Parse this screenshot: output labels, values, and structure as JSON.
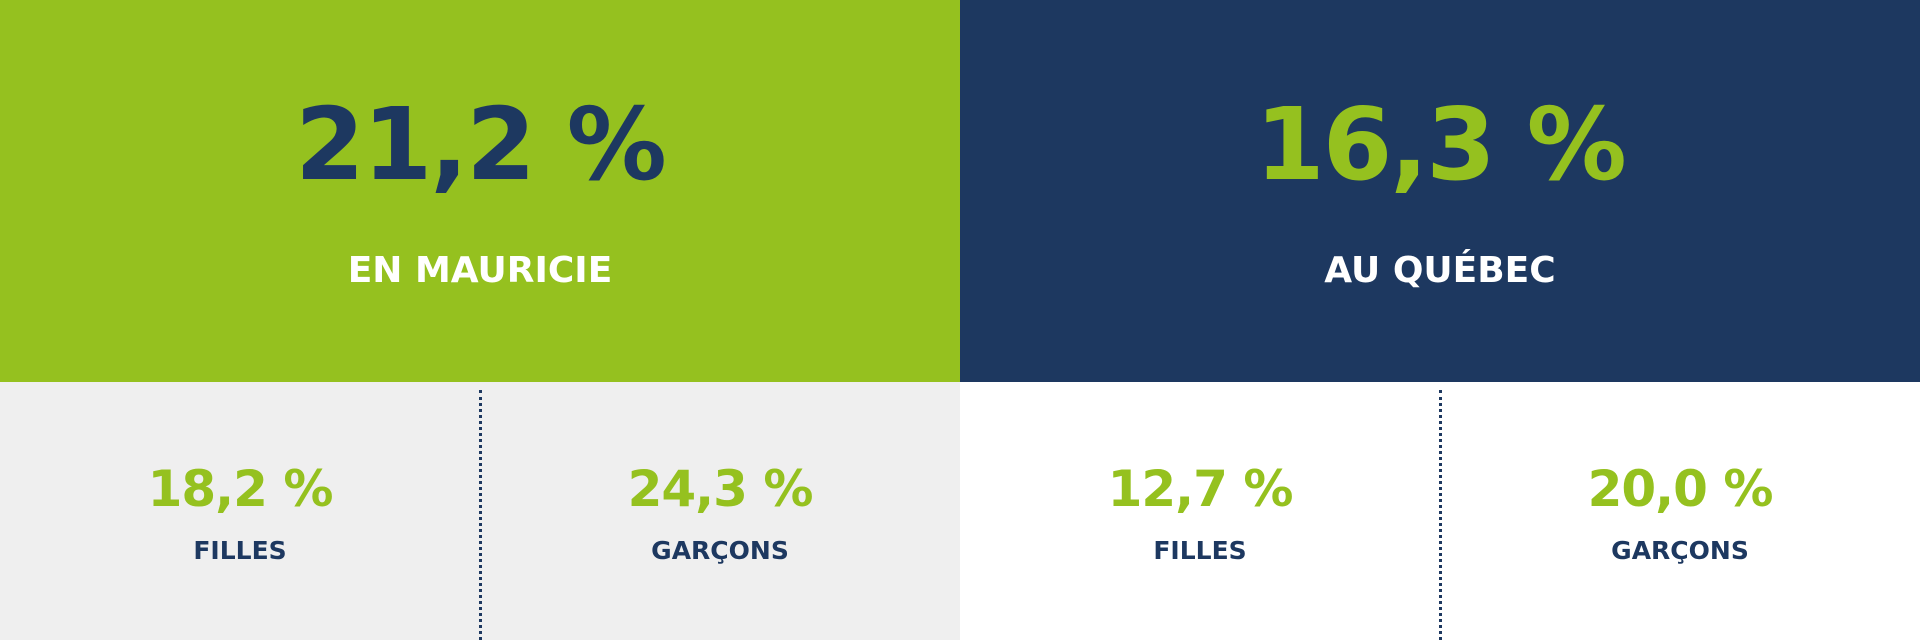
{
  "colors": {
    "green": "#95c11f",
    "navy": "#1d3860",
    "gray": "#efefef",
    "white": "#ffffff"
  },
  "mauricie": {
    "value": "21,2 %",
    "label": "EN MAURICIE",
    "girls": {
      "value": "18,2 %",
      "label": "FILLES"
    },
    "boys": {
      "value": "24,3 %",
      "label": "GARÇONS"
    }
  },
  "quebec": {
    "value": "16,3 %",
    "label": "AU QUÉBEC",
    "girls": {
      "value": "12,7 %",
      "label": "FILLES"
    },
    "boys": {
      "value": "20,0 %",
      "label": "GARÇONS"
    }
  }
}
